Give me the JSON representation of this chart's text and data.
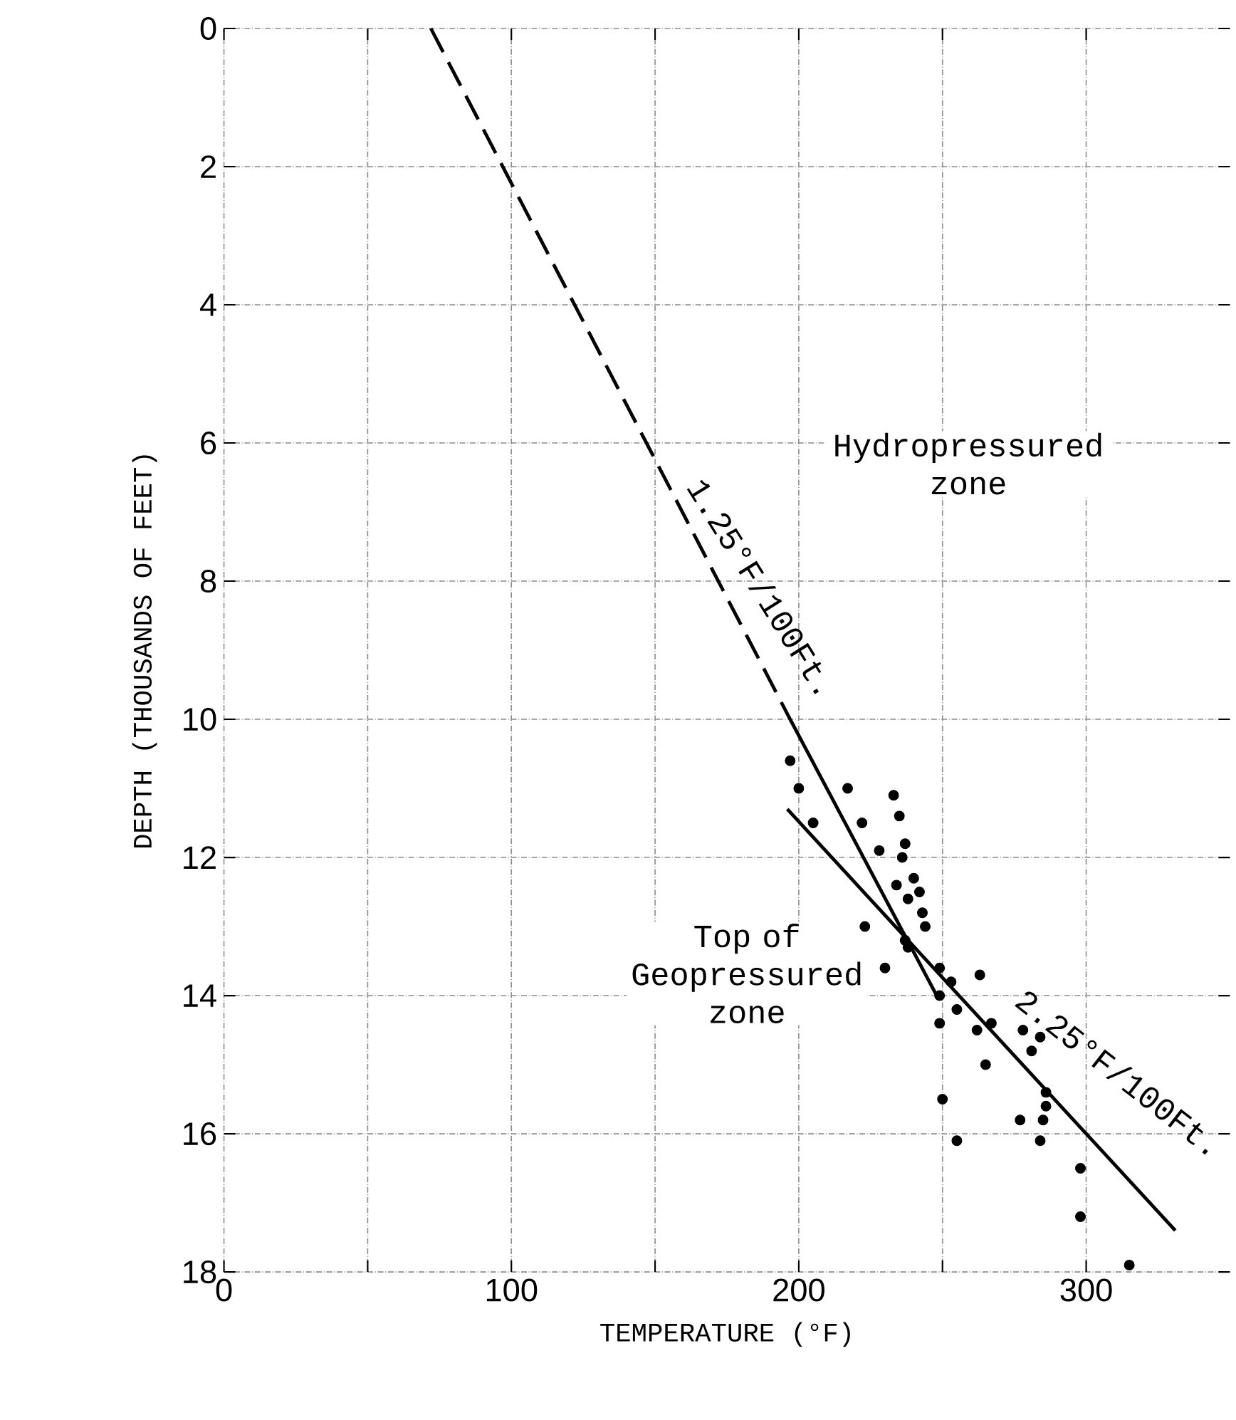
{
  "chart_data": {
    "type": "scatter",
    "xlabel": "TEMPERATURE (°F)",
    "ylabel": "DEPTH (THOUSANDS OF FEET)",
    "xlim": [
      0,
      350
    ],
    "ylim": [
      18,
      0
    ],
    "xticks": [
      0,
      {
        "value": 50,
        "label": null
      },
      100,
      {
        "value": 150,
        "label": null
      },
      200,
      {
        "value": 250,
        "label": null
      },
      300
    ],
    "yticks": [
      0,
      2,
      4,
      6,
      8,
      10,
      12,
      14,
      16,
      18
    ],
    "grid": true,
    "series": [
      {
        "color": "#000000",
        "marker": "circle",
        "x": [
          197,
          200,
          205,
          217,
          222,
          233,
          235,
          237,
          236,
          228,
          240,
          242,
          223,
          230,
          237,
          238,
          234,
          238,
          243,
          244,
          249,
          253,
          249,
          255,
          249,
          263,
          267,
          262,
          265,
          278,
          284,
          281,
          286,
          286,
          277,
          285,
          284,
          250,
          255,
          298,
          298,
          315
        ],
        "values": [
          10.6,
          11.0,
          11.5,
          11.0,
          11.5,
          11.1,
          11.4,
          11.8,
          12.0,
          11.9,
          12.3,
          12.5,
          13.0,
          13.6,
          13.2,
          13.3,
          12.4,
          12.6,
          12.8,
          13.0,
          13.6,
          13.8,
          14.0,
          14.2,
          14.4,
          13.7,
          14.4,
          14.5,
          15.0,
          14.5,
          14.6,
          14.8,
          15.4,
          15.6,
          15.8,
          15.8,
          16.1,
          15.5,
          16.1,
          16.5,
          17.2,
          17.9
        ]
      },
      {
        "type": "line",
        "color": "#000000",
        "line_style": "dashed",
        "marker": "none",
        "x": [
          72,
          197
        ],
        "values": [
          0,
          10
        ]
      },
      {
        "type": "line",
        "color": "#000000",
        "line_style": "solid",
        "marker": "none",
        "x": [
          197,
          248
        ],
        "values": [
          10,
          14
        ]
      },
      {
        "type": "line",
        "color": "#000000",
        "line_style": "solid",
        "marker": "none",
        "x": [
          196,
          331
        ],
        "values": [
          11.3,
          17.4
        ]
      }
    ],
    "annotations": [
      "1.25°F/100Ft.",
      "2.25°F/100Ft.",
      "Hydropressured zone",
      "Top of Geopressured zone"
    ]
  }
}
